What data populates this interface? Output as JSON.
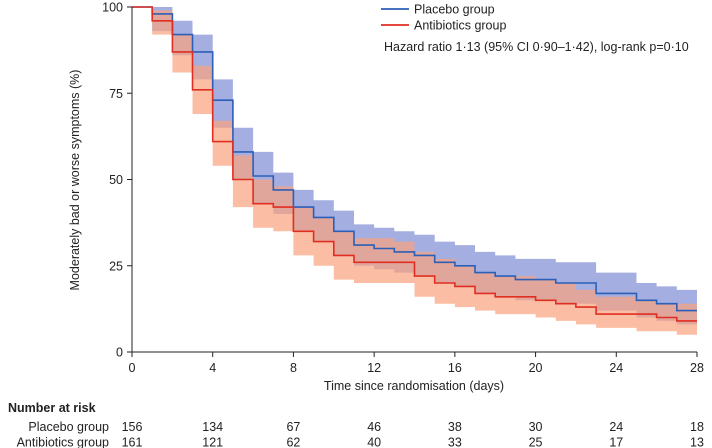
{
  "chart_data": {
    "type": "line",
    "subtype": "kaplan-meier step curves with confidence bands",
    "xlabel": "Time since randomisation (days)",
    "ylabel": "Moderately bad or worse symptoms (%)",
    "xlim": [
      0,
      28
    ],
    "ylim": [
      0,
      100
    ],
    "xticks": [
      0,
      4,
      8,
      12,
      16,
      20,
      24,
      28
    ],
    "yticks": [
      0,
      25,
      50,
      75,
      100
    ],
    "annotation": "Hazard ratio 1·13 (95% CI 0·90–1·42), log-rank p=0·10",
    "legend_position": "top-right",
    "series": [
      {
        "name": "Placebo group",
        "color": "#2b5fb8",
        "band_color": "#7f8cd4",
        "x": [
          0,
          1,
          2,
          3,
          4,
          5,
          6,
          7,
          8,
          9,
          10,
          11,
          12,
          13,
          14,
          15,
          16,
          17,
          18,
          19,
          20,
          21,
          22,
          23,
          24,
          25,
          26,
          27,
          28
        ],
        "y": [
          100,
          98,
          92,
          87,
          73,
          58,
          51,
          47,
          42,
          39,
          35,
          31,
          30,
          29,
          28,
          26,
          25,
          23,
          22,
          21,
          21,
          20,
          20,
          17,
          17,
          15,
          14,
          12,
          12
        ],
        "upper": [
          100,
          100,
          96,
          92,
          79,
          65,
          58,
          52,
          47,
          44,
          41,
          37,
          36,
          35,
          34,
          32,
          31,
          29,
          28,
          27,
          27,
          26,
          26,
          23,
          23,
          20,
          19,
          18,
          18
        ],
        "lower": [
          100,
          93,
          86,
          79,
          65,
          50,
          43,
          40,
          35,
          32,
          28,
          25,
          24,
          23,
          22,
          20,
          19,
          17,
          16,
          15,
          15,
          14,
          14,
          12,
          12,
          10,
          9,
          8,
          8
        ]
      },
      {
        "name": "Antibiotics group",
        "color": "#e02e22",
        "band_color": "#f9a27e",
        "x": [
          0,
          1,
          2,
          3,
          4,
          5,
          6,
          7,
          8,
          9,
          10,
          11,
          12,
          13,
          14,
          15,
          16,
          17,
          18,
          19,
          20,
          21,
          22,
          23,
          24,
          25,
          26,
          27,
          28
        ],
        "y": [
          100,
          96,
          87,
          76,
          61,
          50,
          43,
          42,
          35,
          32,
          28,
          26,
          26,
          26,
          22,
          20,
          19,
          17,
          16,
          16,
          15,
          14,
          13,
          11,
          11,
          11,
          10,
          9,
          9
        ],
        "upper": [
          100,
          99,
          92,
          83,
          67,
          57,
          50,
          48,
          42,
          39,
          35,
          33,
          33,
          32,
          29,
          27,
          25,
          23,
          22,
          22,
          21,
          20,
          18,
          16,
          16,
          15,
          14,
          14,
          14
        ],
        "lower": [
          100,
          92,
          81,
          69,
          54,
          42,
          36,
          35,
          28,
          25,
          21,
          20,
          20,
          20,
          16,
          14,
          13,
          12,
          11,
          11,
          10,
          9,
          8,
          7,
          7,
          6,
          6,
          5,
          5
        ]
      }
    ],
    "risk_table": {
      "title": "Number at risk",
      "timepoints": [
        0,
        4,
        8,
        12,
        16,
        20,
        24,
        28
      ],
      "rows": [
        {
          "label": "Placebo group",
          "values": [
            156,
            134,
            67,
            46,
            38,
            30,
            24,
            18
          ]
        },
        {
          "label": "Antibiotics group",
          "values": [
            161,
            121,
            62,
            40,
            33,
            25,
            17,
            13
          ]
        }
      ]
    }
  }
}
